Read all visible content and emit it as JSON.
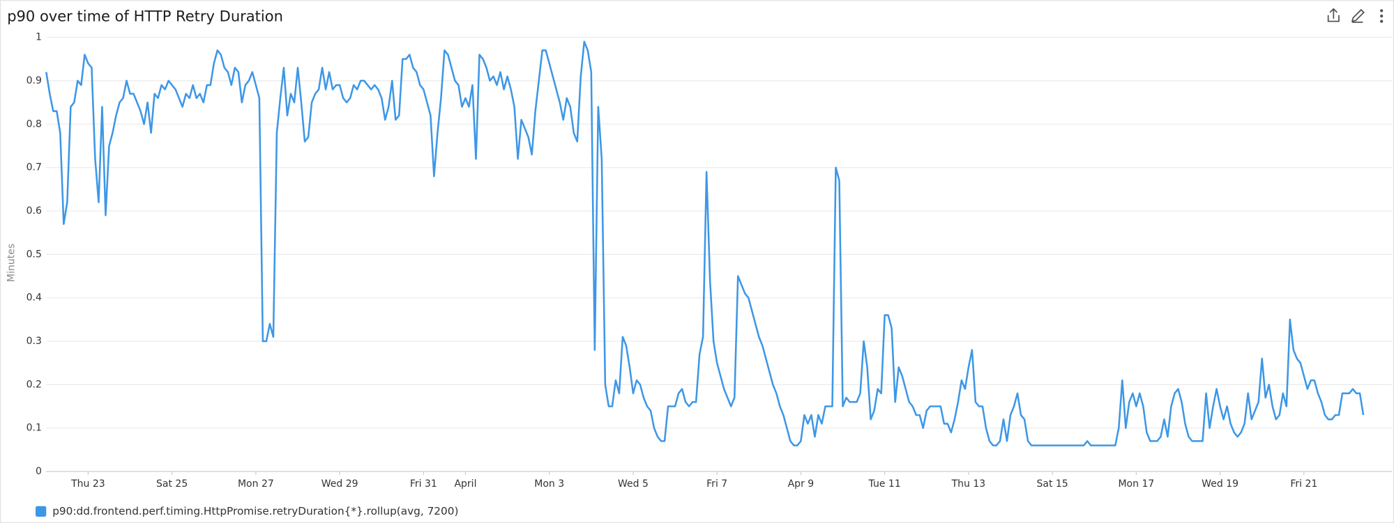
{
  "chart_data": {
    "type": "line",
    "title": "p90 over time of HTTP Retry Duration",
    "y_label": "Minutes",
    "xlim": [
      0,
      768
    ],
    "xticks": [
      {
        "value": 24,
        "label": "Thu 23"
      },
      {
        "value": 72,
        "label": "Sat 25"
      },
      {
        "value": 120,
        "label": "Mon 27"
      },
      {
        "value": 168,
        "label": "Wed 29"
      },
      {
        "value": 216,
        "label": "Fri 31"
      },
      {
        "value": 240,
        "label": "April"
      },
      {
        "value": 288,
        "label": "Mon 3"
      },
      {
        "value": 336,
        "label": "Wed 5"
      },
      {
        "value": 384,
        "label": "Fri 7"
      },
      {
        "value": 432,
        "label": "Apr 9"
      },
      {
        "value": 480,
        "label": "Tue 11"
      },
      {
        "value": 528,
        "label": "Thu 13"
      },
      {
        "value": 576,
        "label": "Sat 15"
      },
      {
        "value": 624,
        "label": "Mon 17"
      },
      {
        "value": 672,
        "label": "Wed 19"
      },
      {
        "value": 720,
        "label": "Fri 21"
      }
    ],
    "ylim": [
      0,
      1
    ],
    "yticks": [
      0,
      0.1,
      0.2,
      0.3,
      0.4,
      0.5,
      0.6,
      0.7,
      0.8,
      0.9,
      1
    ],
    "grid": true,
    "x": [
      0,
      2,
      4,
      6,
      8,
      10,
      12,
      14,
      16,
      18,
      20,
      22,
      24,
      26,
      28,
      30,
      32,
      34,
      36,
      38,
      40,
      42,
      44,
      46,
      48,
      50,
      52,
      54,
      56,
      58,
      60,
      62,
      64,
      66,
      68,
      70,
      72,
      74,
      76,
      78,
      80,
      82,
      84,
      86,
      88,
      90,
      92,
      94,
      96,
      98,
      100,
      102,
      104,
      106,
      108,
      110,
      112,
      114,
      116,
      118,
      120,
      122,
      124,
      126,
      128,
      130,
      132,
      134,
      136,
      138,
      140,
      142,
      144,
      146,
      148,
      150,
      152,
      154,
      156,
      158,
      160,
      162,
      164,
      166,
      168,
      170,
      172,
      174,
      176,
      178,
      180,
      182,
      184,
      186,
      188,
      190,
      192,
      194,
      196,
      198,
      200,
      202,
      204,
      206,
      208,
      210,
      212,
      214,
      216,
      218,
      220,
      222,
      224,
      226,
      228,
      230,
      232,
      234,
      236,
      238,
      240,
      242,
      244,
      246,
      248,
      250,
      252,
      254,
      256,
      258,
      260,
      262,
      264,
      266,
      268,
      270,
      272,
      274,
      276,
      278,
      280,
      282,
      284,
      286,
      288,
      290,
      292,
      294,
      296,
      298,
      300,
      302,
      304,
      306,
      308,
      310,
      312,
      314,
      316,
      318,
      320,
      322,
      324,
      326,
      328,
      330,
      332,
      334,
      336,
      338,
      340,
      342,
      344,
      346,
      348,
      350,
      352,
      354,
      356,
      358,
      360,
      362,
      364,
      366,
      368,
      370,
      372,
      374,
      376,
      378,
      380,
      382,
      384,
      386,
      388,
      390,
      392,
      394,
      396,
      398,
      400,
      402,
      404,
      406,
      408,
      410,
      412,
      414,
      416,
      418,
      420,
      422,
      424,
      426,
      428,
      430,
      432,
      434,
      436,
      438,
      440,
      442,
      444,
      446,
      448,
      450,
      452,
      454,
      456,
      458,
      460,
      462,
      464,
      466,
      468,
      470,
      472,
      474,
      476,
      478,
      480,
      482,
      484,
      486,
      488,
      490,
      492,
      494,
      496,
      498,
      500,
      502,
      504,
      506,
      508,
      510,
      512,
      514,
      516,
      518,
      520,
      522,
      524,
      526,
      528,
      530,
      532,
      534,
      536,
      538,
      540,
      542,
      544,
      546,
      548,
      550,
      552,
      554,
      556,
      558,
      560,
      562,
      564,
      566,
      568,
      570,
      572,
      574,
      576,
      578,
      580,
      582,
      584,
      586,
      588,
      590,
      592,
      594,
      596,
      598,
      600,
      602,
      604,
      606,
      608,
      610,
      612,
      614,
      616,
      618,
      620,
      622,
      624,
      626,
      628,
      630,
      632,
      634,
      636,
      638,
      640,
      642,
      644,
      646,
      648,
      650,
      652,
      654,
      656,
      658,
      660,
      662,
      664,
      666,
      668,
      670,
      672,
      674,
      676,
      678,
      680,
      682,
      684,
      686,
      688,
      690,
      692,
      694,
      696,
      698,
      700,
      702,
      704,
      706,
      708,
      710,
      712,
      714,
      716,
      718,
      720,
      722,
      724,
      726,
      728,
      730,
      732,
      734,
      736,
      738,
      740,
      742,
      744,
      746,
      748,
      750,
      752,
      754
    ],
    "series": [
      {
        "name": "p90:dd.frontend.perf.timing.HttpPromise.retryDuration{*}.rollup(avg, 7200)",
        "color": "#3d97e6",
        "values": [
          0.92,
          0.87,
          0.83,
          0.83,
          0.78,
          0.57,
          0.62,
          0.84,
          0.85,
          0.9,
          0.89,
          0.96,
          0.94,
          0.93,
          0.72,
          0.62,
          0.84,
          0.59,
          0.75,
          0.78,
          0.82,
          0.85,
          0.86,
          0.9,
          0.87,
          0.87,
          0.85,
          0.83,
          0.8,
          0.85,
          0.78,
          0.87,
          0.86,
          0.89,
          0.88,
          0.9,
          0.89,
          0.88,
          0.86,
          0.84,
          0.87,
          0.86,
          0.89,
          0.86,
          0.87,
          0.85,
          0.89,
          0.89,
          0.94,
          0.97,
          0.96,
          0.93,
          0.92,
          0.89,
          0.93,
          0.92,
          0.85,
          0.89,
          0.9,
          0.92,
          0.89,
          0.86,
          0.3,
          0.3,
          0.34,
          0.31,
          0.78,
          0.86,
          0.93,
          0.82,
          0.87,
          0.85,
          0.93,
          0.85,
          0.76,
          0.77,
          0.85,
          0.87,
          0.88,
          0.93,
          0.88,
          0.92,
          0.88,
          0.89,
          0.89,
          0.86,
          0.85,
          0.86,
          0.89,
          0.88,
          0.9,
          0.9,
          0.89,
          0.88,
          0.89,
          0.88,
          0.86,
          0.81,
          0.84,
          0.9,
          0.81,
          0.82,
          0.95,
          0.95,
          0.96,
          0.93,
          0.92,
          0.89,
          0.88,
          0.85,
          0.82,
          0.68,
          0.78,
          0.86,
          0.97,
          0.96,
          0.93,
          0.9,
          0.89,
          0.84,
          0.86,
          0.84,
          0.89,
          0.72,
          0.96,
          0.95,
          0.93,
          0.9,
          0.91,
          0.89,
          0.92,
          0.88,
          0.91,
          0.88,
          0.84,
          0.72,
          0.81,
          0.79,
          0.77,
          0.73,
          0.83,
          0.9,
          0.97,
          0.97,
          0.94,
          0.91,
          0.88,
          0.85,
          0.81,
          0.86,
          0.84,
          0.78,
          0.76,
          0.91,
          0.99,
          0.97,
          0.92,
          0.28,
          0.84,
          0.72,
          0.2,
          0.15,
          0.15,
          0.21,
          0.18,
          0.31,
          0.29,
          0.24,
          0.18,
          0.21,
          0.2,
          0.17,
          0.15,
          0.14,
          0.1,
          0.08,
          0.07,
          0.07,
          0.15,
          0.15,
          0.15,
          0.18,
          0.19,
          0.16,
          0.15,
          0.16,
          0.16,
          0.27,
          0.31,
          0.69,
          0.44,
          0.3,
          0.25,
          0.22,
          0.19,
          0.17,
          0.15,
          0.17,
          0.45,
          0.43,
          0.41,
          0.4,
          0.37,
          0.34,
          0.31,
          0.29,
          0.26,
          0.23,
          0.2,
          0.18,
          0.15,
          0.13,
          0.1,
          0.07,
          0.06,
          0.06,
          0.07,
          0.13,
          0.11,
          0.13,
          0.08,
          0.13,
          0.11,
          0.15,
          0.15,
          0.15,
          0.7,
          0.67,
          0.15,
          0.17,
          0.16,
          0.16,
          0.16,
          0.18,
          0.3,
          0.24,
          0.12,
          0.14,
          0.19,
          0.18,
          0.36,
          0.36,
          0.33,
          0.16,
          0.24,
          0.22,
          0.19,
          0.16,
          0.15,
          0.13,
          0.13,
          0.1,
          0.14,
          0.15,
          0.15,
          0.15,
          0.15,
          0.11,
          0.11,
          0.09,
          0.12,
          0.16,
          0.21,
          0.19,
          0.24,
          0.28,
          0.16,
          0.15,
          0.15,
          0.1,
          0.07,
          0.06,
          0.06,
          0.07,
          0.12,
          0.07,
          0.13,
          0.15,
          0.18,
          0.13,
          0.12,
          0.07,
          0.06,
          0.06,
          0.06,
          0.06,
          0.06,
          0.06,
          0.06,
          0.06,
          0.06,
          0.06,
          0.06,
          0.06,
          0.06,
          0.06,
          0.06,
          0.06,
          0.07,
          0.06,
          0.06,
          0.06,
          0.06,
          0.06,
          0.06,
          0.06,
          0.06,
          0.1,
          0.21,
          0.1,
          0.16,
          0.18,
          0.15,
          0.18,
          0.15,
          0.09,
          0.07,
          0.07,
          0.07,
          0.08,
          0.12,
          0.08,
          0.15,
          0.18,
          0.19,
          0.16,
          0.11,
          0.08,
          0.07,
          0.07,
          0.07,
          0.07,
          0.18,
          0.1,
          0.15,
          0.19,
          0.15,
          0.12,
          0.15,
          0.11,
          0.09,
          0.08,
          0.09,
          0.11,
          0.18,
          0.12,
          0.14,
          0.16,
          0.26,
          0.17,
          0.2,
          0.15,
          0.12,
          0.13,
          0.18,
          0.15,
          0.35,
          0.28,
          0.26,
          0.25,
          0.22,
          0.19,
          0.21,
          0.21,
          0.18,
          0.16,
          0.13,
          0.12,
          0.12,
          0.13,
          0.13,
          0.18,
          0.18,
          0.18,
          0.19,
          0.18,
          0.18,
          0.13
        ]
      }
    ]
  }
}
